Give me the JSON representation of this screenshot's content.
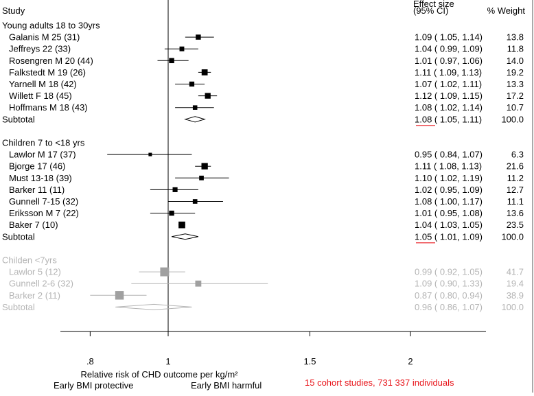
{
  "chart_data": {
    "type": "forest",
    "header": {
      "study": "Study",
      "effect_line1": "Effect size",
      "effect_line2": "(95% CI)",
      "weight": "% Weight"
    },
    "x_scale": "log",
    "xlim": [
      0.7,
      2.3
    ],
    "null_line": 1,
    "x_ticks": [
      {
        "value": 0.8,
        "label": ".8"
      },
      {
        "value": 1,
        "label": "1"
      },
      {
        "value": 1.5,
        "label": "1.5"
      },
      {
        "value": 2,
        "label": "2"
      }
    ],
    "xlabel": "Relative risk of CHD outcome per kg/m²",
    "direction_left": "Early BMI protective",
    "direction_right": "Early BMI harmful",
    "note": "15 cohort studies, 731 337 individuals",
    "colors": {
      "main": "#000000",
      "faded": "#b4b4b4",
      "note": "#e8151b",
      "underline": "#e8151b"
    },
    "groups": [
      {
        "title": "Young adults 18 to 30yrs",
        "faded": false,
        "studies": [
          {
            "label": "Galanis M 25 (31)",
            "est": 1.09,
            "lo": 1.05,
            "hi": 1.14,
            "weight": 13.8,
            "text": "1.09 ( 1.05, 1.14)",
            "wtext": "13.8"
          },
          {
            "label": "Jeffreys 22 (33)",
            "est": 1.04,
            "lo": 0.99,
            "hi": 1.09,
            "weight": 11.8,
            "text": "1.04 ( 0.99, 1.09)",
            "wtext": "11.8"
          },
          {
            "label": "Rosengren M 20 (44)",
            "est": 1.01,
            "lo": 0.97,
            "hi": 1.06,
            "weight": 14.0,
            "text": "1.01 ( 0.97, 1.06)",
            "wtext": "14.0"
          },
          {
            "label": "Falkstedt M 19 (26)",
            "est": 1.11,
            "lo": 1.09,
            "hi": 1.13,
            "weight": 19.2,
            "text": "1.11 ( 1.09, 1.13)",
            "wtext": "19.2"
          },
          {
            "label": "Yarnell M 18 (42)",
            "est": 1.07,
            "lo": 1.02,
            "hi": 1.11,
            "weight": 13.3,
            "text": "1.07 ( 1.02, 1.11)",
            "wtext": "13.3"
          },
          {
            "label": "Willett F 18 (45)",
            "est": 1.12,
            "lo": 1.09,
            "hi": 1.15,
            "weight": 17.2,
            "text": "1.12 ( 1.09, 1.15)",
            "wtext": "17.2"
          },
          {
            "label": "Hoffmans M 18 (43)",
            "est": 1.08,
            "lo": 1.02,
            "hi": 1.14,
            "weight": 10.7,
            "text": "1.08 ( 1.02, 1.14)",
            "wtext": "10.7"
          }
        ],
        "subtotal": {
          "label": "Subtotal",
          "est": 1.08,
          "lo": 1.05,
          "hi": 1.11,
          "text": "1.08 ( 1.05, 1.11)",
          "wtext": "100.0",
          "underline": true
        }
      },
      {
        "title": "Children 7 to <18 yrs",
        "faded": false,
        "studies": [
          {
            "label": "Lawlor M 17 (37)",
            "est": 0.95,
            "lo": 0.84,
            "hi": 1.07,
            "weight": 6.3,
            "text": "0.95 ( 0.84, 1.07)",
            "wtext": "6.3"
          },
          {
            "label": "Bjorge 17 (46)",
            "est": 1.11,
            "lo": 1.08,
            "hi": 1.13,
            "weight": 21.6,
            "text": "1.11 ( 1.08, 1.13)",
            "wtext": "21.6"
          },
          {
            "label": "Must 13-18 (39)",
            "est": 1.1,
            "lo": 1.02,
            "hi": 1.19,
            "weight": 11.2,
            "text": "1.10 ( 1.02, 1.19)",
            "wtext": "11.2"
          },
          {
            "label": "Barker 11 (11)",
            "est": 1.02,
            "lo": 0.95,
            "hi": 1.09,
            "weight": 12.7,
            "text": "1.02 ( 0.95, 1.09)",
            "wtext": "12.7"
          },
          {
            "label": "Gunnell 7-15 (32)",
            "est": 1.08,
            "lo": 1.0,
            "hi": 1.17,
            "weight": 11.1,
            "text": "1.08 ( 1.00, 1.17)",
            "wtext": "11.1"
          },
          {
            "label": "Eriksson M 7 (22)",
            "est": 1.01,
            "lo": 0.95,
            "hi": 1.08,
            "weight": 13.6,
            "text": "1.01 ( 0.95, 1.08)",
            "wtext": "13.6"
          },
          {
            "label": "Baker 7 (10)",
            "est": 1.04,
            "lo": 1.03,
            "hi": 1.05,
            "weight": 23.5,
            "text": "1.04 ( 1.03, 1.05)",
            "wtext": "23.5"
          }
        ],
        "subtotal": {
          "label": "Subtotal",
          "est": 1.05,
          "lo": 1.01,
          "hi": 1.09,
          "text": "1.05 ( 1.01, 1.09)",
          "wtext": "100.0",
          "underline": true
        }
      },
      {
        "title": "Childen <7yrs",
        "faded": true,
        "studies": [
          {
            "label": "Lawlor 5 (12)",
            "est": 0.99,
            "lo": 0.92,
            "hi": 1.05,
            "weight": 41.7,
            "text": "0.99 ( 0.92, 1.05)",
            "wtext": "41.7"
          },
          {
            "label": "Gunnell 2-6 (32)",
            "est": 1.09,
            "lo": 0.9,
            "hi": 1.33,
            "weight": 19.4,
            "text": "1.09 ( 0.90, 1.33)",
            "wtext": "19.4"
          },
          {
            "label": "Barker 2 (11)",
            "est": 0.87,
            "lo": 0.8,
            "hi": 0.94,
            "weight": 38.9,
            "text": "0.87 ( 0.80, 0.94)",
            "wtext": "38.9"
          }
        ],
        "subtotal": {
          "label": "Subtotal",
          "est": 0.96,
          "lo": 0.86,
          "hi": 1.07,
          "text": "0.96 ( 0.86, 1.07)",
          "wtext": "100.0",
          "underline": false
        }
      }
    ]
  }
}
